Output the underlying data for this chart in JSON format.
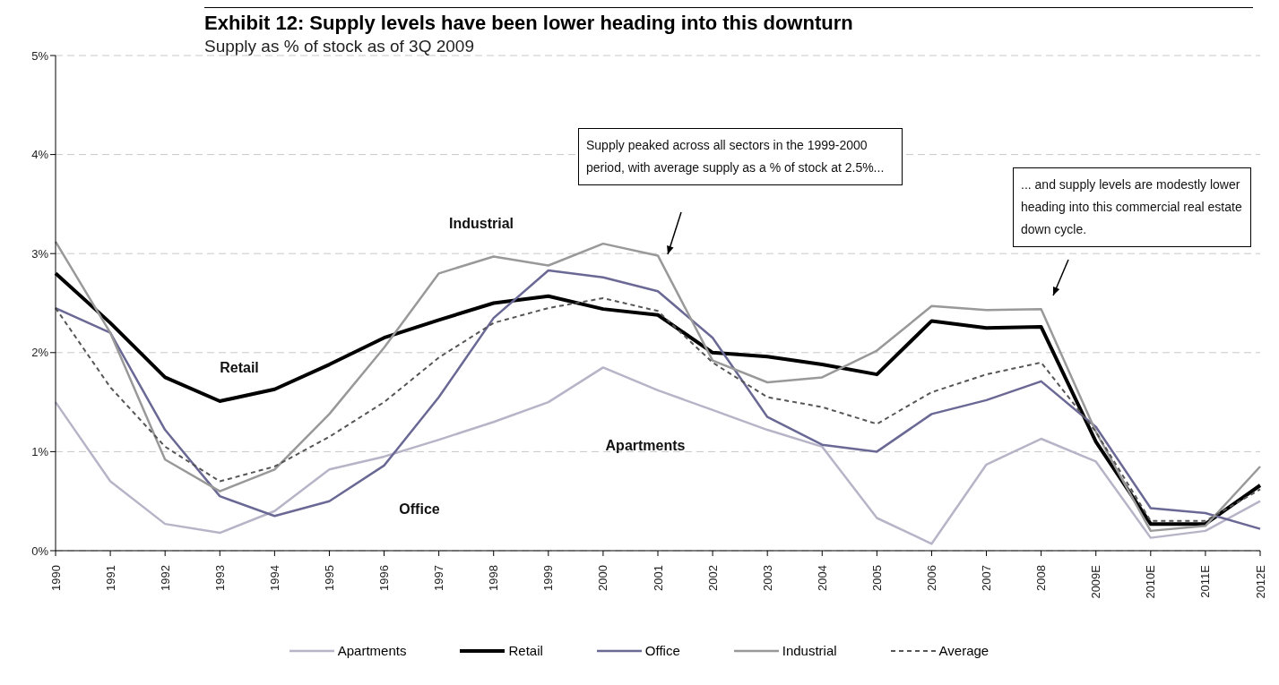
{
  "chart_data": {
    "type": "line",
    "title": "Exhibit 12:  Supply levels have been lower heading into this downturn",
    "subtitle": "Supply as % of stock as of 3Q 2009",
    "categories": [
      "1990",
      "1991",
      "1992",
      "1993",
      "1994",
      "1995",
      "1996",
      "1997",
      "1998",
      "1999",
      "2000",
      "2001",
      "2002",
      "2003",
      "2004",
      "2005",
      "2006",
      "2007",
      "2008",
      "2009E",
      "2010E",
      "2011E",
      "2012E"
    ],
    "series": [
      {
        "name": "Apartments",
        "color": "#b8b4c8",
        "values": [
          1.5,
          0.7,
          0.27,
          0.18,
          0.4,
          0.82,
          0.95,
          1.12,
          1.3,
          1.5,
          1.85,
          1.62,
          1.42,
          1.22,
          1.05,
          0.33,
          0.07,
          0.87,
          1.13,
          0.9,
          0.13,
          0.2,
          0.5
        ]
      },
      {
        "name": "Retail",
        "color": "#000000",
        "values": [
          2.8,
          2.3,
          1.75,
          1.51,
          1.63,
          1.88,
          2.15,
          2.33,
          2.5,
          2.57,
          2.44,
          2.38,
          2.0,
          1.96,
          1.88,
          1.78,
          2.32,
          2.25,
          2.26,
          1.1,
          0.27,
          0.27,
          0.66
        ]
      },
      {
        "name": "Office",
        "color": "#6a6894",
        "values": [
          2.45,
          2.2,
          1.22,
          0.55,
          0.35,
          0.5,
          0.86,
          1.55,
          2.35,
          2.83,
          2.76,
          2.62,
          2.15,
          1.35,
          1.07,
          1.0,
          1.38,
          1.52,
          1.71,
          1.25,
          0.43,
          0.38,
          0.22
        ]
      },
      {
        "name": "Industrial",
        "color": "#999999",
        "values": [
          3.12,
          2.2,
          0.92,
          0.6,
          0.82,
          1.38,
          2.05,
          2.8,
          2.97,
          2.88,
          3.1,
          2.98,
          1.92,
          1.7,
          1.75,
          2.02,
          2.47,
          2.43,
          2.44,
          1.2,
          0.2,
          0.25,
          0.85
        ]
      },
      {
        "name": "Average",
        "color": "#555555",
        "line_style": "dashed",
        "values": [
          2.45,
          1.65,
          1.05,
          0.7,
          0.85,
          1.15,
          1.5,
          1.95,
          2.3,
          2.45,
          2.55,
          2.42,
          1.9,
          1.55,
          1.45,
          1.28,
          1.6,
          1.78,
          1.9,
          1.2,
          0.3,
          0.3,
          0.62
        ]
      }
    ],
    "ylim": [
      0,
      5
    ],
    "yticks": [
      {
        "value": 0,
        "label": "0%"
      },
      {
        "value": 1,
        "label": "1%"
      },
      {
        "value": 2,
        "label": "2%"
      },
      {
        "value": 3,
        "label": "3%"
      },
      {
        "value": 4,
        "label": "4%"
      },
      {
        "value": 5,
        "label": "5%"
      }
    ],
    "grid": "y",
    "legend": "bottom",
    "marker": "none",
    "annotations": [
      "Industrial",
      "Retail",
      "Office",
      "Apartments",
      "Supply peaked across all sectors in the 1999-2000 period, with average supply as a % of stock at 2.5%...",
      "... and supply levels are modestly lower heading into this commercial real estate down cycle."
    ]
  }
}
